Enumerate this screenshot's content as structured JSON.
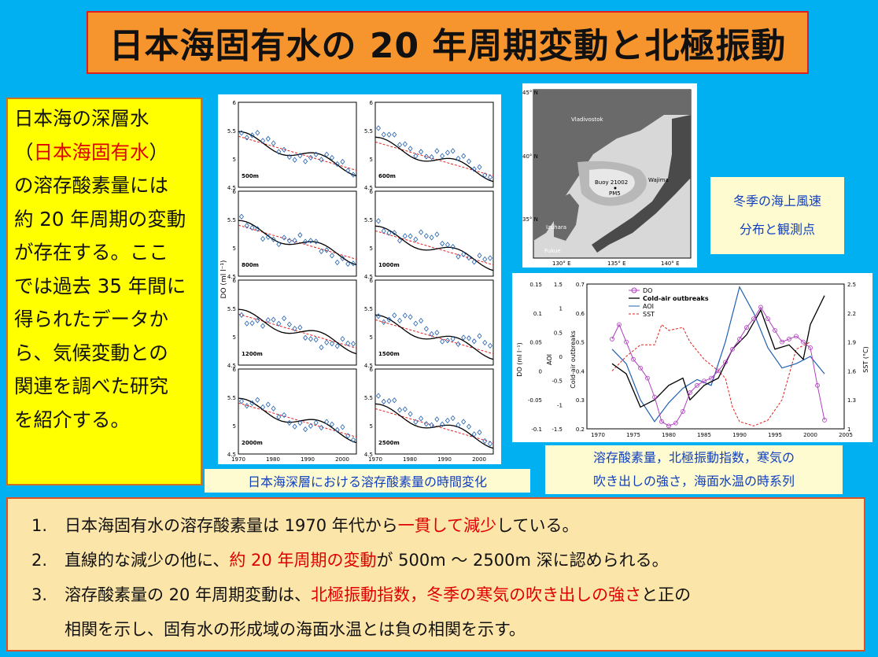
{
  "title": "日本海固有水の 20 年周期変動と北極振動",
  "intro": {
    "l1": "日本海の深層水",
    "l2a": "（",
    "l2b": "日本海固有水",
    "l2c": "）",
    "l3": "の溶存酸素量には",
    "l4": "約 20 年周期の変動",
    "l5": "が存在する。ここ",
    "l6": "では過去 35 年間に",
    "l7": "得られたデータか",
    "l8": "ら、気候変動との",
    "l9": "関連を調べた研究",
    "l10": "を紹介する。"
  },
  "panels": {
    "ylabel": "DO (ml l⁻¹)",
    "yticks": [
      "6",
      "5.5",
      "5",
      "4.5"
    ],
    "xticks": [
      "1970",
      "1980",
      "1990",
      "2000"
    ],
    "depths": [
      "500m",
      "600m",
      "800m",
      "1000m",
      "1200m",
      "1500m",
      "2000m",
      "2500m"
    ],
    "caption": "日本海深層における溶存酸素量の時間変化"
  },
  "map": {
    "lat45": "45° N",
    "lat40": "40° N",
    "lat35": "35° N",
    "lon130": "130° E",
    "lon135": "135° E",
    "lon140": "140° E",
    "vladivostok": "Vladivostok",
    "buoy": "Buoy 21002",
    "pm5": "PM5",
    "wajima": "Wajima",
    "izuhara": "Izuhara",
    "fukue": "Fukue",
    "caption1": "冬季の海上風速",
    "caption2": "分布と観測点"
  },
  "series_chart": {
    "legend": [
      "DO",
      "Cold-air outbreaks",
      "AOI",
      "SST"
    ],
    "y1label": "DO (ml l⁻¹)",
    "y2label": "AOI",
    "y3label": "Cold-air outbreaks",
    "y4label": "SST (°C)",
    "y1ticks": [
      "0.15",
      "0.1",
      "0.05",
      "0",
      "-0.05",
      "-0.1"
    ],
    "y2ticks": [
      "1.5",
      "1",
      "0.5",
      "0",
      "-0.5",
      "-1",
      "-1.5"
    ],
    "y3ticks": [
      "0.7",
      "0.6",
      "0.5",
      "0.4",
      "0.3",
      "0.2"
    ],
    "y4ticks": [
      "2.5",
      "2.2",
      "1.9",
      "1.6",
      "1.3",
      "1"
    ],
    "xticks": [
      "1970",
      "1975",
      "1980",
      "1985",
      "1990",
      "1995",
      "2000",
      "2005"
    ],
    "caption1": "溶存酸素量，北極振動指数，寒気の",
    "caption2": "吹き出しの強さ，海面水温の時系列",
    "colors": {
      "DO": "#b040c0",
      "cold": "#000000",
      "AOI": "#2060b0",
      "SST": "#e02020"
    }
  },
  "summary": [
    {
      "num": "1.",
      "a": "日本海固有水の溶存酸素量は 1970 年代から",
      "hl": "一貫して減少",
      "b": "している。",
      "c": "",
      "d": ""
    },
    {
      "num": "2.",
      "a": "直線的な減少の他に、",
      "hl": "約 20 年周期の変動",
      "b": "が 500m ～ 2500m 深に認められる。",
      "c": "",
      "d": ""
    },
    {
      "num": "3.",
      "a": "溶存酸素量の 20 年周期変動は、",
      "hl": "北極振動指数，冬季の寒気の吹き出しの強さ",
      "b": "と正の",
      "c": "相関を示し、固有水の形成域の海面水温とは負の相関を示す。",
      "d": ""
    }
  ]
}
